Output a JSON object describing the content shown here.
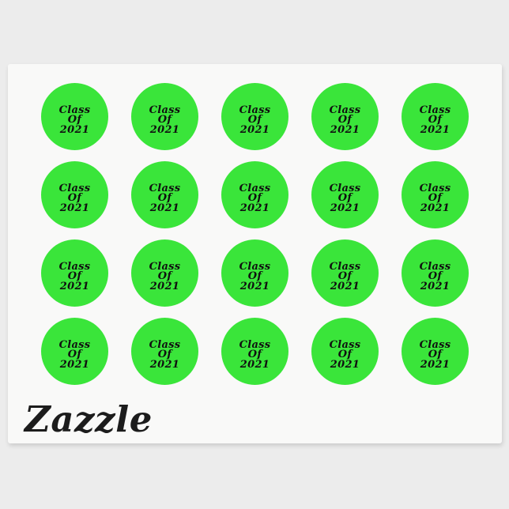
{
  "product_image": {
    "background_color": "#ececec",
    "sheet": {
      "color": "#f9f9f8",
      "brand_logo": "Zazzle",
      "logo_color": "#1c1c1c",
      "grid": {
        "rows": 4,
        "columns": 5,
        "sticker_count": 20
      },
      "sticker": {
        "shape": "round",
        "fill_color": "#3ae53a",
        "text_color": "#101010",
        "lines": [
          "Class",
          "Of",
          "2021"
        ]
      }
    }
  }
}
